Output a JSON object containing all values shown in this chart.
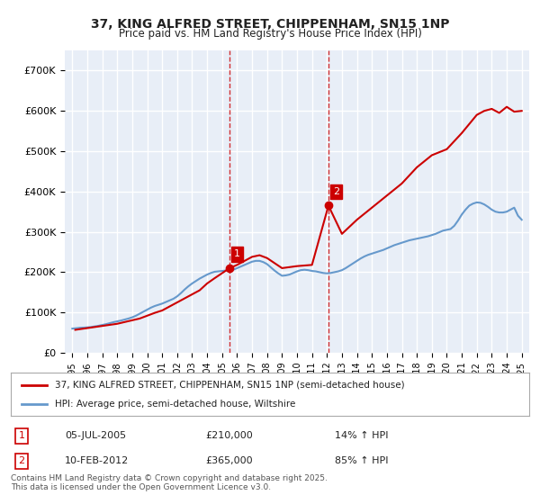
{
  "title": "37, KING ALFRED STREET, CHIPPENHAM, SN15 1NP",
  "subtitle": "Price paid vs. HM Land Registry's House Price Index (HPI)",
  "background_color": "#ffffff",
  "plot_bg_color": "#e8eef7",
  "grid_color": "#ffffff",
  "ylim": [
    0,
    750000
  ],
  "yticks": [
    0,
    100000,
    200000,
    300000,
    400000,
    500000,
    600000,
    700000
  ],
  "ytick_labels": [
    "£0",
    "£100K",
    "£200K",
    "£300K",
    "£400K",
    "£500K",
    "£600K",
    "£700K"
  ],
  "xlim_start": 1994.5,
  "xlim_end": 2025.5,
  "xticks": [
    1995,
    1996,
    1997,
    1998,
    1999,
    2000,
    2001,
    2002,
    2003,
    2004,
    2005,
    2006,
    2007,
    2008,
    2009,
    2010,
    2011,
    2012,
    2013,
    2014,
    2015,
    2016,
    2017,
    2018,
    2019,
    2020,
    2021,
    2022,
    2023,
    2024,
    2025
  ],
  "hpi_color": "#6699cc",
  "price_color": "#cc0000",
  "marker_color": "#cc0000",
  "sale1_x": 2005.5,
  "sale1_y": 210000,
  "sale1_label": "1",
  "sale2_x": 2012.1,
  "sale2_y": 365000,
  "sale2_label": "2",
  "annotation_box_color": "#cc0000",
  "dashed_line_color": "#cc0000",
  "legend_label_price": "37, KING ALFRED STREET, CHIPPENHAM, SN15 1NP (semi-detached house)",
  "legend_label_hpi": "HPI: Average price, semi-detached house, Wiltshire",
  "table_row1_num": "1",
  "table_row1_date": "05-JUL-2005",
  "table_row1_price": "£210,000",
  "table_row1_hpi": "14% ↑ HPI",
  "table_row2_num": "2",
  "table_row2_date": "10-FEB-2012",
  "table_row2_price": "£365,000",
  "table_row2_hpi": "85% ↑ HPI",
  "footer": "Contains HM Land Registry data © Crown copyright and database right 2025.\nThis data is licensed under the Open Government Licence v3.0.",
  "hpi_data_x": [
    1995.0,
    1995.25,
    1995.5,
    1995.75,
    1996.0,
    1996.25,
    1996.5,
    1996.75,
    1997.0,
    1997.25,
    1997.5,
    1997.75,
    1998.0,
    1998.25,
    1998.5,
    1998.75,
    1999.0,
    1999.25,
    1999.5,
    1999.75,
    2000.0,
    2000.25,
    2000.5,
    2000.75,
    2001.0,
    2001.25,
    2001.5,
    2001.75,
    2002.0,
    2002.25,
    2002.5,
    2002.75,
    2003.0,
    2003.25,
    2003.5,
    2003.75,
    2004.0,
    2004.25,
    2004.5,
    2004.75,
    2005.0,
    2005.25,
    2005.5,
    2005.75,
    2006.0,
    2006.25,
    2006.5,
    2006.75,
    2007.0,
    2007.25,
    2007.5,
    2007.75,
    2008.0,
    2008.25,
    2008.5,
    2008.75,
    2009.0,
    2009.25,
    2009.5,
    2009.75,
    2010.0,
    2010.25,
    2010.5,
    2010.75,
    2011.0,
    2011.25,
    2011.5,
    2011.75,
    2012.0,
    2012.25,
    2012.5,
    2012.75,
    2013.0,
    2013.25,
    2013.5,
    2013.75,
    2014.0,
    2014.25,
    2014.5,
    2014.75,
    2015.0,
    2015.25,
    2015.5,
    2015.75,
    2016.0,
    2016.25,
    2016.5,
    2016.75,
    2017.0,
    2017.25,
    2017.5,
    2017.75,
    2018.0,
    2018.25,
    2018.5,
    2018.75,
    2019.0,
    2019.25,
    2019.5,
    2019.75,
    2020.0,
    2020.25,
    2020.5,
    2020.75,
    2021.0,
    2021.25,
    2021.5,
    2021.75,
    2022.0,
    2022.25,
    2022.5,
    2022.75,
    2023.0,
    2023.25,
    2023.5,
    2023.75,
    2024.0,
    2024.25,
    2024.5,
    2024.75,
    2025.0
  ],
  "hpi_data_y": [
    60000,
    61000,
    62000,
    62500,
    63000,
    64000,
    65500,
    67000,
    69000,
    71000,
    73500,
    76000,
    78000,
    80000,
    82500,
    85000,
    88000,
    92000,
    97000,
    102000,
    107000,
    112000,
    116000,
    119000,
    122000,
    126000,
    130000,
    134000,
    140000,
    148000,
    157000,
    165000,
    172000,
    178000,
    184000,
    189000,
    194000,
    198000,
    201000,
    202000,
    203000,
    204000,
    205000,
    206000,
    210000,
    214000,
    218000,
    222000,
    226000,
    228000,
    228000,
    225000,
    220000,
    212000,
    204000,
    197000,
    191000,
    192000,
    194000,
    198000,
    202000,
    205000,
    206000,
    205000,
    203000,
    202000,
    200000,
    198000,
    197000,
    198000,
    200000,
    202000,
    205000,
    210000,
    216000,
    222000,
    228000,
    234000,
    239000,
    243000,
    246000,
    249000,
    252000,
    255000,
    259000,
    263000,
    267000,
    270000,
    273000,
    276000,
    279000,
    281000,
    283000,
    285000,
    287000,
    289000,
    292000,
    295000,
    299000,
    303000,
    305000,
    307000,
    315000,
    328000,
    343000,
    355000,
    365000,
    370000,
    373000,
    372000,
    368000,
    362000,
    355000,
    350000,
    348000,
    348000,
    350000,
    355000,
    360000,
    340000,
    330000
  ],
  "price_data_x": [
    1995.2,
    1998.0,
    1999.5,
    2000.5,
    2001.0,
    2002.0,
    2003.5,
    2004.0,
    2004.5,
    2005.5,
    2006.0,
    2006.5,
    2007.0,
    2007.5,
    2008.0,
    2009.0,
    2010.0,
    2011.0,
    2012.1,
    2013.0,
    2014.0,
    2015.0,
    2016.0,
    2017.0,
    2018.0,
    2019.0,
    2020.0,
    2021.0,
    2022.0,
    2022.5,
    2023.0,
    2023.5,
    2024.0,
    2024.5,
    2025.0
  ],
  "price_data_y": [
    57000,
    72000,
    85000,
    99000,
    105000,
    125000,
    155000,
    172000,
    185000,
    210000,
    218000,
    228000,
    238000,
    242000,
    235000,
    210000,
    215000,
    218000,
    365000,
    295000,
    330000,
    360000,
    390000,
    420000,
    460000,
    490000,
    505000,
    545000,
    590000,
    600000,
    605000,
    595000,
    610000,
    598000,
    600000
  ]
}
